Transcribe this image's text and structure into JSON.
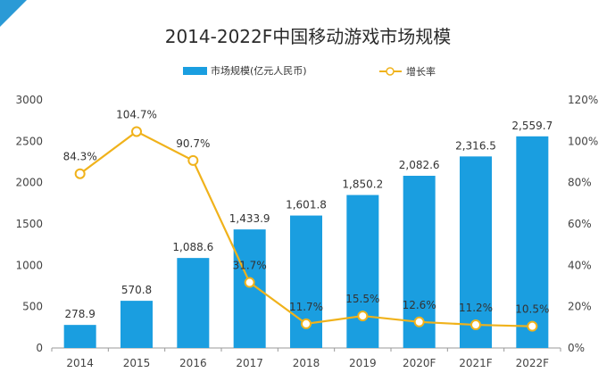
{
  "chart_data": {
    "type": "bar",
    "title": "2014-2022F中国移动游戏市场规模",
    "categories": [
      "2014",
      "2015",
      "2016",
      "2017",
      "2018",
      "2019",
      "2020F",
      "2021F",
      "2022F"
    ],
    "series": [
      {
        "name": "市场规模(亿元人民币)",
        "type": "bar",
        "axis": "left",
        "color": "#1a9ee0",
        "values": [
          278.9,
          570.8,
          1088.6,
          1433.9,
          1601.8,
          1850.2,
          2082.6,
          2316.5,
          2559.7
        ],
        "labels": [
          "278.9",
          "570.8",
          "1,088.6",
          "1,433.9",
          "1,601.8",
          "1,850.2",
          "2,082.6",
          "2,316.5",
          "2,559.7"
        ]
      },
      {
        "name": "增长率",
        "type": "line",
        "axis": "right",
        "color": "#f0b21b",
        "values": [
          84.3,
          104.7,
          90.7,
          31.7,
          11.7,
          15.5,
          12.6,
          11.2,
          10.5
        ],
        "labels": [
          "84.3%",
          "104.7%",
          "90.7%",
          "31.7%",
          "11.7%",
          "15.5%",
          "12.6%",
          "11.2%",
          "10.5%"
        ]
      }
    ],
    "y_left": {
      "min": 0,
      "max": 3000,
      "ticks": [
        "0",
        "500",
        "1000",
        "1500",
        "2000",
        "2500",
        "3000"
      ]
    },
    "y_right": {
      "min": 0,
      "max": 120,
      "ticks": [
        "0%",
        "20%",
        "40%",
        "60%",
        "80%",
        "100%",
        "120%"
      ]
    },
    "legend": {
      "placement": "top-center"
    },
    "grid": false
  },
  "theme": {
    "accent": "#2a9ad6"
  }
}
